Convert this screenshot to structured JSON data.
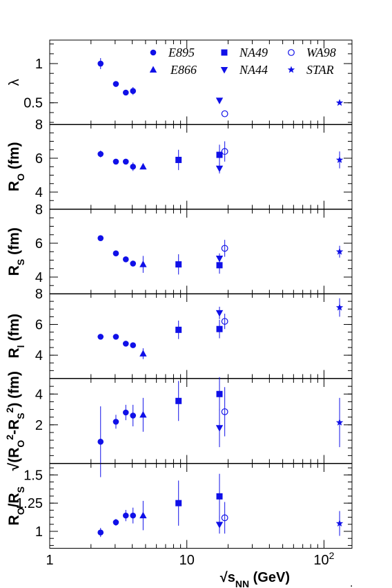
{
  "colors": {
    "marker": "#1010e8",
    "axis": "#000000",
    "background": "#ffffff"
  },
  "chart_data": {
    "type": "scatter",
    "x_scale": "log",
    "xlim": [
      1,
      160
    ],
    "x_ticks": [
      {
        "value": 1,
        "label": "1"
      },
      {
        "value": 10,
        "label": "10"
      },
      {
        "value": 100,
        "label": "10",
        "exponent": "2"
      }
    ],
    "xlabel": {
      "prefix": "√s",
      "sub": "NN",
      "suffix": " (GeV)"
    },
    "legend": {
      "position": "top-right-of-top-panel",
      "entries": [
        {
          "name": "E895",
          "marker": "circle-filled"
        },
        {
          "name": "NA49",
          "marker": "square-filled"
        },
        {
          "name": "WA98",
          "marker": "circle-open"
        },
        {
          "name": "E866",
          "marker": "triangle-up"
        },
        {
          "name": "NA44",
          "marker": "triangle-down"
        },
        {
          "name": "STAR",
          "marker": "star"
        }
      ]
    },
    "panels": [
      {
        "id": "lambda",
        "ylabel": [
          {
            "t": "λ"
          }
        ],
        "ylim": [
          0.22,
          1.3
        ],
        "yticks": [
          {
            "value": 0.5,
            "label": "0.5"
          },
          {
            "value": 1,
            "label": "1"
          }
        ],
        "series": [
          {
            "name": "E895",
            "points": [
              [
                2.35,
                1.0,
                0.07
              ],
              [
                3.04,
                0.74,
                0
              ],
              [
                3.59,
                0.63,
                0.03
              ],
              [
                4.05,
                0.65,
                0.05
              ]
            ]
          },
          {
            "name": "NA44",
            "points": [
              [
                17.3,
                0.53,
                0
              ]
            ]
          },
          {
            "name": "WA98",
            "points": [
              [
                18.9,
                0.36,
                0
              ]
            ]
          },
          {
            "name": "STAR",
            "points": [
              [
                130,
                0.5,
                0
              ]
            ]
          }
        ]
      },
      {
        "id": "Ro",
        "ylabel": [
          {
            "t": "R"
          },
          {
            "t": "O",
            "sub": true
          },
          {
            "t": " (fm)"
          }
        ],
        "ylim": [
          3.0,
          8.0
        ],
        "yticks": [
          {
            "value": 4,
            "label": "4"
          },
          {
            "value": 6,
            "label": "6"
          },
          {
            "value": 8,
            "label": "8"
          }
        ],
        "series": [
          {
            "name": "E895",
            "points": [
              [
                2.35,
                6.25,
                0.2
              ],
              [
                3.04,
                5.8,
                0
              ],
              [
                3.59,
                5.8,
                0
              ],
              [
                4.05,
                5.5,
                0.25
              ]
            ]
          },
          {
            "name": "E866",
            "points": [
              [
                4.8,
                5.5,
                0.15
              ]
            ]
          },
          {
            "name": "NA49",
            "points": [
              [
                8.7,
                5.9,
                0.6
              ],
              [
                17.3,
                6.2,
                0.6
              ]
            ]
          },
          {
            "name": "NA44",
            "points": [
              [
                17.3,
                5.4,
                0.3
              ]
            ]
          },
          {
            "name": "WA98",
            "points": [
              [
                18.9,
                6.4,
                0.6
              ]
            ]
          },
          {
            "name": "STAR",
            "points": [
              [
                130,
                5.9,
                0.5
              ]
            ]
          }
        ]
      },
      {
        "id": "Rs",
        "ylabel": [
          {
            "t": "R"
          },
          {
            "t": "S",
            "sub": true
          },
          {
            "t": " (fm)"
          }
        ],
        "ylim": [
          3.0,
          8.0
        ],
        "yticks": [
          {
            "value": 4,
            "label": "4"
          },
          {
            "value": 6,
            "label": "6"
          },
          {
            "value": 8,
            "label": "8"
          }
        ],
        "series": [
          {
            "name": "E895",
            "points": [
              [
                2.35,
                6.3,
                0
              ],
              [
                3.04,
                5.4,
                0
              ],
              [
                3.59,
                5.05,
                0
              ],
              [
                4.05,
                4.8,
                0
              ]
            ]
          },
          {
            "name": "E866",
            "points": [
              [
                4.8,
                4.75,
                0.5
              ]
            ]
          },
          {
            "name": "NA49",
            "points": [
              [
                8.7,
                4.75,
                0.6
              ],
              [
                17.3,
                4.7,
                0.5
              ]
            ]
          },
          {
            "name": "NA44",
            "points": [
              [
                17.3,
                5.1,
                0.3
              ]
            ]
          },
          {
            "name": "WA98",
            "points": [
              [
                18.9,
                5.7,
                0.5
              ]
            ]
          },
          {
            "name": "STAR",
            "points": [
              [
                130,
                5.5,
                0.35
              ]
            ]
          }
        ]
      },
      {
        "id": "Rl",
        "ylabel": [
          {
            "t": "R"
          },
          {
            "t": "l",
            "sub": true
          },
          {
            "t": " (fm)"
          }
        ],
        "ylim": [
          2.5,
          8.0
        ],
        "yticks": [
          {
            "value": 4,
            "label": "4"
          },
          {
            "value": 6,
            "label": "6"
          },
          {
            "value": 8,
            "label": "8"
          }
        ],
        "series": [
          {
            "name": "E895",
            "points": [
              [
                2.35,
                5.2,
                0
              ],
              [
                3.04,
                5.2,
                0
              ],
              [
                3.59,
                4.75,
                0
              ],
              [
                4.05,
                4.65,
                0
              ]
            ]
          },
          {
            "name": "E866",
            "points": [
              [
                4.8,
                4.1,
                0.35
              ]
            ]
          },
          {
            "name": "NA49",
            "points": [
              [
                8.7,
                5.65,
                0.6
              ],
              [
                17.3,
                5.7,
                0.6
              ]
            ]
          },
          {
            "name": "NA44",
            "points": [
              [
                17.3,
                6.75,
                0.4
              ]
            ]
          },
          {
            "name": "WA98",
            "points": [
              [
                18.9,
                6.2,
                0.5
              ]
            ]
          },
          {
            "name": "STAR",
            "points": [
              [
                130,
                7.1,
                0.6
              ]
            ]
          }
        ]
      },
      {
        "id": "sqrt",
        "ylabel": [
          {
            "t": "√(R"
          },
          {
            "t": "O",
            "sub": true
          },
          {
            "t": "2",
            "sup": true
          },
          {
            "t": "-R"
          },
          {
            "t": "S",
            "sub": true
          },
          {
            "t": "2",
            "sup": true
          },
          {
            "t": ") (fm)"
          }
        ],
        "ylim": [
          -0.5,
          5.0
        ],
        "yticks": [
          {
            "value": 2,
            "label": "2"
          },
          {
            "value": 4,
            "label": "4"
          }
        ],
        "series": [
          {
            "name": "E895",
            "points": [
              [
                2.35,
                0.9,
                2.3
              ],
              [
                3.04,
                2.2,
                0.45
              ],
              [
                3.59,
                2.8,
                0.5
              ],
              [
                4.05,
                2.6,
                0.7
              ]
            ]
          },
          {
            "name": "E866",
            "points": [
              [
                4.8,
                2.65,
                1.1
              ]
            ]
          },
          {
            "name": "NA49",
            "points": [
              [
                8.7,
                3.55,
                1.3
              ],
              [
                17.3,
                4.0,
                1.1
              ]
            ]
          },
          {
            "name": "NA44",
            "points": [
              [
                17.3,
                1.8,
                1.25
              ]
            ]
          },
          {
            "name": "WA98",
            "points": [
              [
                18.9,
                2.85,
                1.6
              ]
            ]
          },
          {
            "name": "STAR",
            "points": [
              [
                130,
                2.15,
                1.6
              ]
            ]
          }
        ]
      },
      {
        "id": "ratio",
        "ylabel": [
          {
            "t": "R"
          },
          {
            "t": "O",
            "sub": true
          },
          {
            "t": "/R"
          },
          {
            "t": "S",
            "sub": true
          }
        ],
        "ylim": [
          0.85,
          1.6
        ],
        "yticks": [
          {
            "value": 1,
            "label": "1"
          },
          {
            "value": 1.25,
            "label": "1.25"
          },
          {
            "value": 1.5,
            "label": "1.5"
          }
        ],
        "series": [
          {
            "name": "E895",
            "points": [
              [
                2.35,
                0.99,
                0.04
              ],
              [
                3.04,
                1.08,
                0.03
              ],
              [
                3.59,
                1.14,
                0.05
              ],
              [
                4.05,
                1.14,
                0.07
              ]
            ]
          },
          {
            "name": "E866",
            "points": [
              [
                4.8,
                1.14,
                0.13
              ]
            ]
          },
          {
            "name": "NA49",
            "points": [
              [
                8.7,
                1.25,
                0.2
              ],
              [
                17.3,
                1.31,
                0.2
              ]
            ]
          },
          {
            "name": "NA44",
            "points": [
              [
                17.3,
                1.06,
                0.08
              ]
            ]
          },
          {
            "name": "WA98",
            "points": [
              [
                18.9,
                1.12,
                0.14
              ]
            ]
          },
          {
            "name": "STAR",
            "points": [
              [
                130,
                1.07,
                0.11
              ]
            ]
          }
        ]
      }
    ],
    "footnote": "."
  }
}
